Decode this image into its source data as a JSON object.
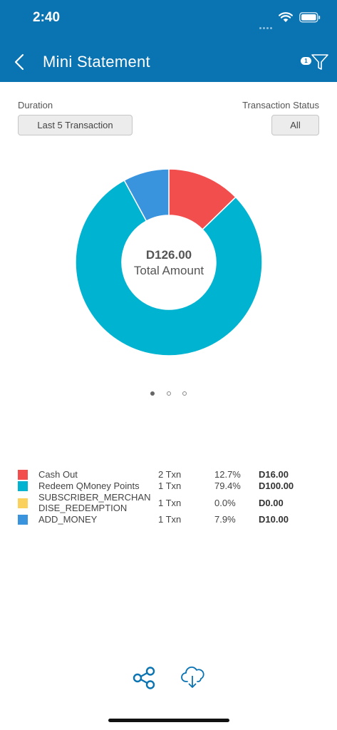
{
  "status_bar": {
    "time": "2:40"
  },
  "nav": {
    "title": "Mini Statement",
    "filter_badge": "1"
  },
  "filters": {
    "duration_label": "Duration",
    "duration_value": "Last 5 Transaction",
    "status_label": "Transaction Status",
    "status_value": "All"
  },
  "summary": {
    "total_amount": "D126.00",
    "total_label": "Total Amount"
  },
  "chart_data": {
    "type": "pie",
    "donut": true,
    "slices": [
      {
        "name": "Cash Out",
        "value": 16.0,
        "percent": 12.7,
        "color": "#f24e4e"
      },
      {
        "name": "Redeem QMoney Points",
        "value": 100.0,
        "percent": 79.4,
        "color": "#00b4d1"
      },
      {
        "name": "SUBSCRIBER_MERCHANDISE_REDEMPTION",
        "value": 0.0,
        "percent": 0.0,
        "color": "#f9d15c"
      },
      {
        "name": "ADD_MONEY",
        "value": 10.0,
        "percent": 7.9,
        "color": "#3a93dd"
      }
    ]
  },
  "pager": {
    "pages": 3,
    "active": 0
  },
  "legend": [
    {
      "name": "Cash Out",
      "count": "2 Txn",
      "percent": "12.7%",
      "amount": "D16.00",
      "color": "#f24e4e"
    },
    {
      "name": "Redeem QMoney Points",
      "count": "1 Txn",
      "percent": "79.4%",
      "amount": "D100.00",
      "color": "#00b4d1"
    },
    {
      "name": "SUBSCRIBER_MERCHAN DISE_REDEMPTION",
      "count": "1 Txn",
      "percent": "0.0%",
      "amount": "D0.00",
      "color": "#f9d15c"
    },
    {
      "name": "ADD_MONEY",
      "count": "1 Txn",
      "percent": "7.9%",
      "amount": "D10.00",
      "color": "#3a93dd"
    }
  ],
  "actions": {
    "share_icon": "share-icon",
    "download_icon": "cloud-download-icon"
  },
  "colors": {
    "header": "#0a73b2",
    "accent": "#0a73b2"
  }
}
